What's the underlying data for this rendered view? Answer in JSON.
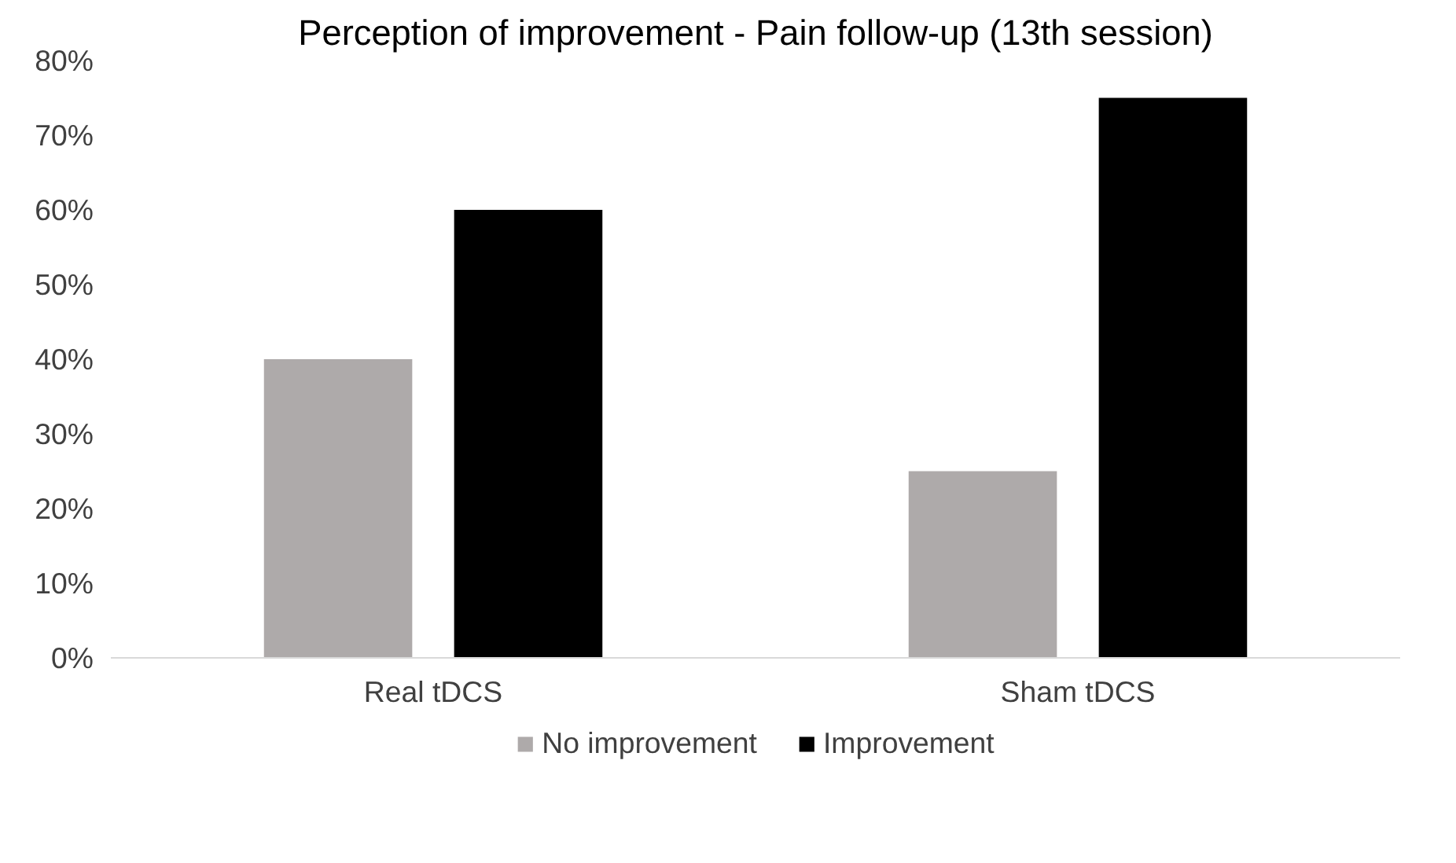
{
  "chart_data": {
    "type": "bar",
    "title": "Perception of improvement - Pain follow-up (13th session)",
    "categories": [
      "Real tDCS",
      "Sham tDCS"
    ],
    "series": [
      {
        "name": "No improvement",
        "color": "#aeaaaa",
        "values": [
          40,
          25
        ]
      },
      {
        "name": "Improvement",
        "color": "#000000",
        "values": [
          60,
          75
        ]
      }
    ],
    "ylim": [
      0,
      80
    ],
    "yticks": [
      {
        "value": 0,
        "label": "0%"
      },
      {
        "value": 10,
        "label": "10%"
      },
      {
        "value": 20,
        "label": "20%"
      },
      {
        "value": 30,
        "label": "30%"
      },
      {
        "value": 40,
        "label": "40%"
      },
      {
        "value": 50,
        "label": "50%"
      },
      {
        "value": 60,
        "label": "60%"
      },
      {
        "value": 70,
        "label": "70%"
      },
      {
        "value": 80,
        "label": "80%"
      }
    ],
    "grid": false,
    "legend": "bottom"
  }
}
